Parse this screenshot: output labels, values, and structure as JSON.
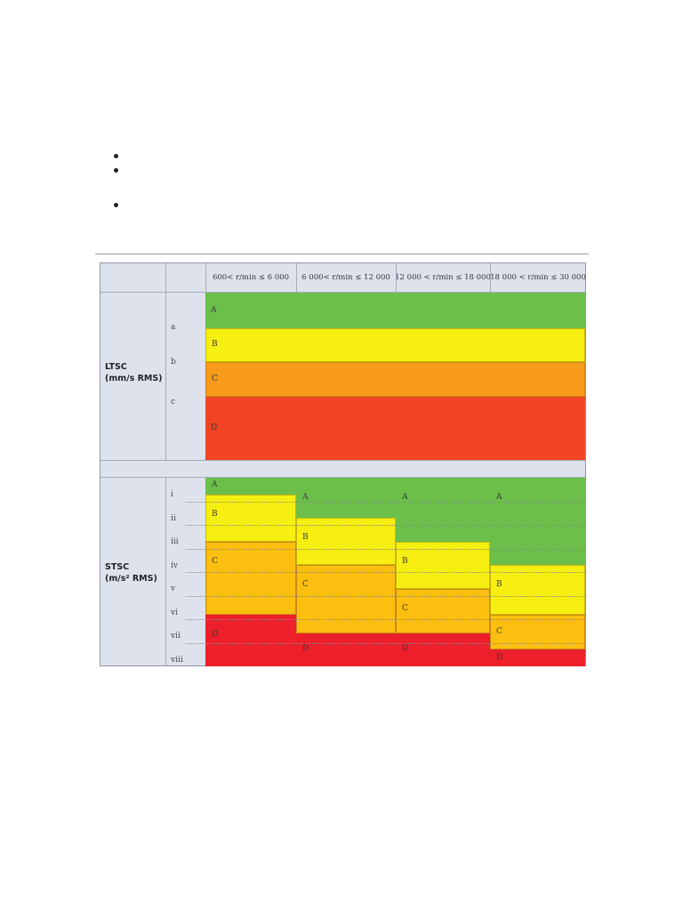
{
  "colors": {
    "A": "#6cc04a",
    "B": "#f7ee12",
    "C_ltsc": "#f89a1c",
    "C_stsc": "#fdbf0f",
    "D_ltsc": "#f04424",
    "D_stsc": "#ed1f2b"
  },
  "bullets": [
    {
      "id": "b1"
    },
    {
      "id": "b2"
    },
    {
      "id": "b3"
    }
  ],
  "table": {
    "headers": [
      "600< r/min ≤ 6 000",
      "6 000< r/min ≤ 12 000",
      "12 000 < r/min ≤ 18 000",
      "18 000 < r/min ≤ 30 000"
    ],
    "ltsc": {
      "label_line1": "LTSC",
      "label_line2": "(mm/s RMS)",
      "levels": [
        "a",
        "b",
        "c"
      ],
      "zones": [
        "A",
        "B",
        "C",
        "D"
      ]
    },
    "stsc": {
      "label_line1": "STSC",
      "label_line2": "(m/s² RMS)",
      "levels": [
        "i",
        "ii",
        "iii",
        "iv",
        "v",
        "vi",
        "vii",
        "viii"
      ],
      "columns": [
        {
          "zones": [
            {
              "grade": "A",
              "from": 0,
              "to": 0.7
            },
            {
              "grade": "B",
              "from": 0.7,
              "to": 2.7
            },
            {
              "grade": "C",
              "from": 2.7,
              "to": 5.8
            },
            {
              "grade": "D",
              "from": 5.8,
              "to": 8
            }
          ]
        },
        {
          "zones": [
            {
              "grade": "A",
              "from": 0,
              "to": 1.7
            },
            {
              "grade": "B",
              "from": 1.7,
              "to": 3.7
            },
            {
              "grade": "C",
              "from": 3.7,
              "to": 6.6
            },
            {
              "grade": "D",
              "from": 6.6,
              "to": 8
            }
          ]
        },
        {
          "zones": [
            {
              "grade": "A",
              "from": 0,
              "to": 2.7
            },
            {
              "grade": "B",
              "from": 2.7,
              "to": 4.7
            },
            {
              "grade": "C",
              "from": 4.7,
              "to": 6.6
            },
            {
              "grade": "D",
              "from": 6.6,
              "to": 8
            }
          ]
        },
        {
          "zones": [
            {
              "grade": "A",
              "from": 0,
              "to": 3.7
            },
            {
              "grade": "B",
              "from": 3.7,
              "to": 5.8
            },
            {
              "grade": "C",
              "from": 5.8,
              "to": 7.3
            },
            {
              "grade": "D",
              "from": 7.3,
              "to": 8
            }
          ]
        }
      ]
    }
  }
}
